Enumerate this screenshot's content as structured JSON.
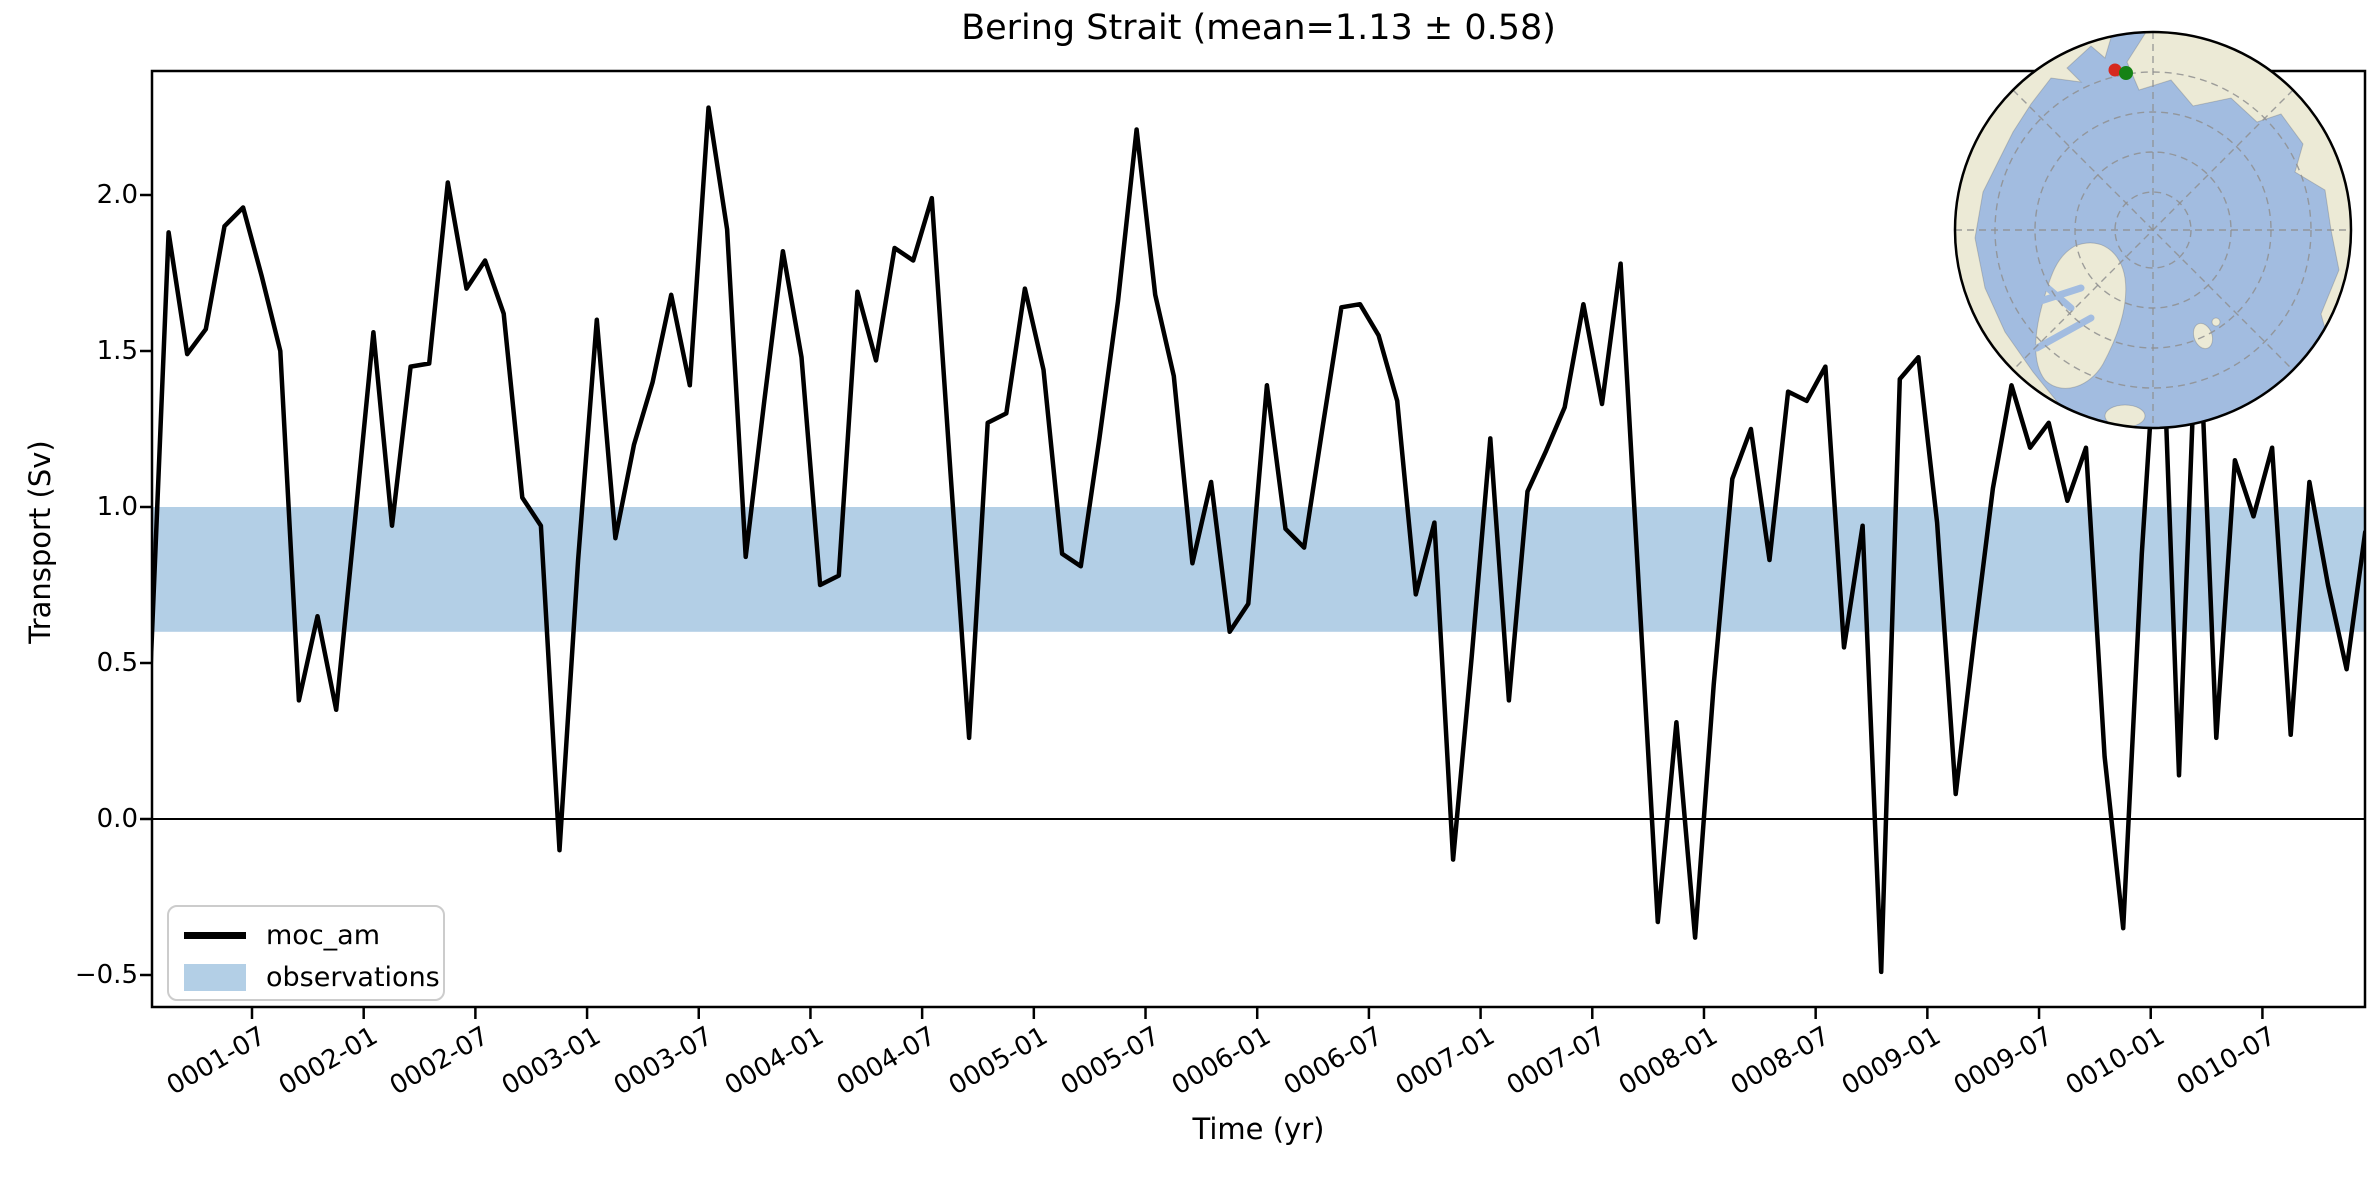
{
  "title": "Bering Strait (mean=1.13 ± 0.58)",
  "axes": {
    "xlabel": "Time (yr)",
    "ylabel": "Transport (Sv)"
  },
  "legend": {
    "entries": [
      {
        "label": "moc_am",
        "type": "line",
        "color": "#000000"
      },
      {
        "label": "observations",
        "type": "patch",
        "color": "#b3cfe6"
      }
    ]
  },
  "chart_data": {
    "type": "line",
    "title": "Bering Strait (mean=1.13 ± 0.58)",
    "xlabel": "Time (yr)",
    "ylabel": "Transport (Sv)",
    "x_start": "0001-01",
    "x_end": "0010-12",
    "x_step_months": 1,
    "xtick_labels": [
      "0001-07",
      "0002-01",
      "0002-07",
      "0003-01",
      "0003-07",
      "0004-01",
      "0004-07",
      "0005-01",
      "0005-07",
      "0006-01",
      "0006-07",
      "0007-01",
      "0007-07",
      "0008-01",
      "0008-07",
      "0009-01",
      "0009-07",
      "0010-01",
      "0010-07"
    ],
    "ytick_values": [
      -0.5,
      0.0,
      0.5,
      1.0,
      1.5,
      2.0
    ],
    "ytick_labels": [
      "−0.5",
      "0.0",
      "0.5",
      "1.0",
      "1.5",
      "2.0"
    ],
    "ylim": [
      -0.6,
      2.4
    ],
    "grid": false,
    "legend_position": "lower left",
    "mean": 1.13,
    "std": 0.58,
    "series": [
      {
        "name": "moc_am",
        "color": "#000000",
        "values": [
          0.44,
          1.88,
          1.49,
          1.57,
          1.9,
          1.96,
          1.74,
          1.5,
          0.38,
          0.65,
          0.35,
          0.95,
          1.56,
          0.94,
          1.45,
          1.46,
          2.04,
          1.7,
          1.79,
          1.62,
          1.03,
          0.94,
          -0.1,
          0.83,
          1.6,
          0.9,
          1.2,
          1.4,
          1.68,
          1.39,
          2.28,
          1.89,
          0.84,
          1.34,
          1.82,
          1.48,
          0.75,
          0.78,
          1.69,
          1.47,
          1.83,
          1.79,
          1.99,
          1.11,
          0.26,
          1.27,
          1.3,
          1.7,
          1.44,
          0.85,
          0.81,
          1.22,
          1.66,
          2.21,
          1.68,
          1.42,
          0.82,
          1.08,
          0.6,
          0.69,
          1.39,
          0.93,
          0.87,
          1.26,
          1.64,
          1.65,
          1.55,
          1.34,
          0.72,
          0.95,
          -0.13,
          0.52,
          1.22,
          0.38,
          1.05,
          1.18,
          1.32,
          1.65,
          1.33,
          1.78,
          0.72,
          -0.33,
          0.31,
          -0.38,
          0.43,
          1.09,
          1.25,
          0.83,
          1.37,
          1.34,
          1.45,
          0.55,
          0.94,
          -0.49,
          1.41,
          1.48,
          0.95,
          0.08,
          0.58,
          1.06,
          1.39,
          1.19,
          1.27,
          1.02,
          1.19,
          0.2,
          -0.35,
          0.85,
          1.78,
          0.14,
          1.72,
          0.26,
          1.15,
          0.97,
          1.19,
          0.27,
          1.08,
          0.75,
          0.48,
          0.92
        ]
      }
    ],
    "observations_band": {
      "label": "observations",
      "low": 0.6,
      "high": 1.0,
      "color": "#b3cfe6"
    },
    "zero_line": 0.0
  },
  "inset_map": {
    "description": "north-polar-map",
    "ocean_color": "#a2bce0",
    "land_color": "#ecead6",
    "graticule_color": "#8f8f8f",
    "outline_color": "#000000",
    "markers": [
      {
        "name": "red-marker",
        "color": "#d6281e"
      },
      {
        "name": "green-marker",
        "color": "#158215"
      }
    ]
  }
}
